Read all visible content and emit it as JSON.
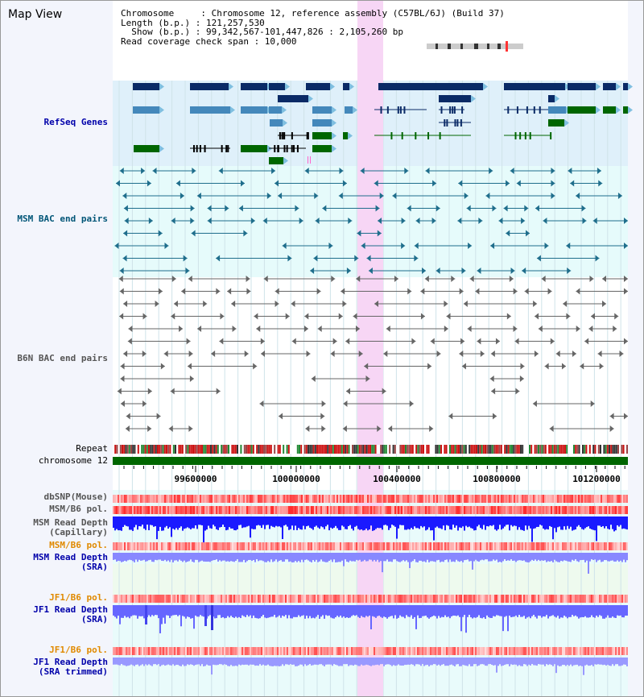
{
  "view_title": "Map View",
  "info": {
    "chromosome": "Chromosome     : Chromosome 12, reference assembly (C57BL/6J) (Build 37)",
    "length": "Length (b.p.) : 121,257,530",
    "show": "  Show (b.p.) : 99,342,567-101,447,826 : 2,105,260 bp",
    "coverage": "Read coverage check span : 10,000"
  },
  "tracks": {
    "refseq": {
      "label": "RefSeq Genes",
      "color": "#0000aa"
    },
    "msm_bac": {
      "label": "MSM BAC end pairs",
      "color": "#005577"
    },
    "b6n_bac": {
      "label": "B6N BAC end pairs",
      "color": "#555555"
    },
    "repeat": {
      "label": "Repeat"
    },
    "chromosome": {
      "label": "chromosome 12"
    },
    "dbsnp": {
      "label": "dbSNP(Mouse)"
    },
    "msm_b6_pol_1": {
      "label": "MSM/B6 pol."
    },
    "msm_depth_cap": {
      "line1": "MSM Read Depth",
      "line2": "(Capillary)"
    },
    "msm_b6_pol_2": {
      "label": "MSM/B6 pol."
    },
    "msm_depth_sra": {
      "line1": "MSM Read Depth",
      "line2": "(SRA)"
    },
    "jf1_b6_pol_1": {
      "label": "JF1/B6 pol."
    },
    "jf1_depth_sra": {
      "line1": "JF1 Read Depth",
      "line2": "(SRA)"
    },
    "jf1_b6_pol_2": {
      "label": "JF1/B6 pol."
    },
    "jf1_depth_trim": {
      "line1": "JF1 Read Depth",
      "line2": "(SRA trimmed)"
    }
  },
  "axis": {
    "ticks": [
      "99600000",
      "100000000",
      "100400000",
      "100800000",
      "101200000"
    ]
  },
  "colors": {
    "gene_dark": "#0a2a66",
    "gene_mid": "#4488bb",
    "gene_green": "#006600",
    "highlight": "#f7d6f5",
    "depth_blue": "#1a1aff",
    "depth_light": "#8888ff",
    "pol_red": "#ee3333"
  }
}
